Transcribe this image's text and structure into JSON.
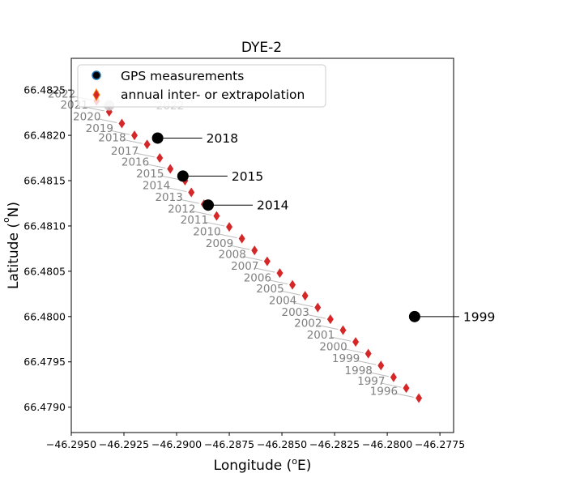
{
  "chart_data": {
    "type": "scatter",
    "title": "DYE-2",
    "xlabel_main": "Longitude (",
    "xlabel_sup": "o",
    "xlabel_tail": "E)",
    "ylabel_main": "Latitude (",
    "ylabel_sup": "o",
    "ylabel_tail": "N)",
    "xlim": [
      -46.295,
      -46.27685
    ],
    "ylim": [
      66.47872,
      66.48285
    ],
    "xticks": [
      -46.295,
      -46.2925,
      -46.29,
      -46.2875,
      -46.285,
      -46.2825,
      -46.28,
      -46.2775
    ],
    "xtick_labels": [
      "−46.2950",
      "−46.2925",
      "−46.2900",
      "−46.2875",
      "−46.2850",
      "−46.2825",
      "−46.2800",
      "−46.2775"
    ],
    "yticks": [
      66.479,
      66.4795,
      66.48,
      66.4805,
      66.481,
      66.4815,
      66.482,
      66.4825
    ],
    "ytick_labels": [
      "66.4790",
      "66.4795",
      "66.4800",
      "66.4805",
      "66.4810",
      "66.4815",
      "66.4820",
      "66.4825"
    ],
    "legend": {
      "placement": "top-left",
      "entries": [
        {
          "label": "GPS measurements",
          "marker": "circle"
        },
        {
          "label": "annual inter- or extrapolation",
          "marker": "diamond"
        }
      ]
    },
    "series": [
      {
        "name": "GPS measurements",
        "color": "#000000",
        "points": [
          {
            "year": "1999",
            "lon": -46.2787,
            "lat": 66.48
          },
          {
            "year": "2014",
            "lon": -46.2885,
            "lat": 66.48123
          },
          {
            "year": "2015",
            "lon": -46.2897,
            "lat": 66.48155
          },
          {
            "year": "2018",
            "lon": -46.2909,
            "lat": 66.48197
          },
          {
            "year": "2022",
            "lon": -46.2932,
            "lat": 66.48233
          }
        ]
      },
      {
        "name": "annual inter- or extrapolation",
        "color": "#d62728",
        "points": [
          {
            "year": "1996",
            "lon": -46.2785,
            "lat": 66.4791
          },
          {
            "year": "1997",
            "lon": -46.2791,
            "lat": 66.47921
          },
          {
            "year": "1998",
            "lon": -46.2797,
            "lat": 66.47933
          },
          {
            "year": "1999",
            "lon": -46.2803,
            "lat": 66.47946
          },
          {
            "year": "2000",
            "lon": -46.2809,
            "lat": 66.47959
          },
          {
            "year": "2001",
            "lon": -46.2815,
            "lat": 66.47972
          },
          {
            "year": "2002",
            "lon": -46.2821,
            "lat": 66.47985
          },
          {
            "year": "2003",
            "lon": -46.2827,
            "lat": 66.47997
          },
          {
            "year": "2004",
            "lon": -46.2833,
            "lat": 66.4801
          },
          {
            "year": "2005",
            "lon": -46.2839,
            "lat": 66.48023
          },
          {
            "year": "2006",
            "lon": -46.2845,
            "lat": 66.48035
          },
          {
            "year": "2007",
            "lon": -46.2851,
            "lat": 66.48048
          },
          {
            "year": "2008",
            "lon": -46.2857,
            "lat": 66.48061
          },
          {
            "year": "2009",
            "lon": -46.2863,
            "lat": 66.48073
          },
          {
            "year": "2010",
            "lon": -46.2869,
            "lat": 66.48086
          },
          {
            "year": "2011",
            "lon": -46.2875,
            "lat": 66.48099
          },
          {
            "year": "2012",
            "lon": -46.2881,
            "lat": 66.48111
          },
          {
            "year": "2013",
            "lon": -46.2887,
            "lat": 66.48124
          },
          {
            "year": "2014",
            "lon": -46.2893,
            "lat": 66.48137
          },
          {
            "year": "2015",
            "lon": -46.2896,
            "lat": 66.4815
          },
          {
            "year": "2016",
            "lon": -46.2903,
            "lat": 66.48163
          },
          {
            "year": "2017",
            "lon": -46.2908,
            "lat": 66.48175
          },
          {
            "year": "2018",
            "lon": -46.2914,
            "lat": 66.4819
          },
          {
            "year": "2019",
            "lon": -46.292,
            "lat": 66.482
          },
          {
            "year": "2020",
            "lon": -46.2926,
            "lat": 66.48213
          },
          {
            "year": "2021",
            "lon": -46.2932,
            "lat": 66.48226
          },
          {
            "year": "2022",
            "lon": -46.2938,
            "lat": 66.48238
          }
        ]
      }
    ]
  }
}
